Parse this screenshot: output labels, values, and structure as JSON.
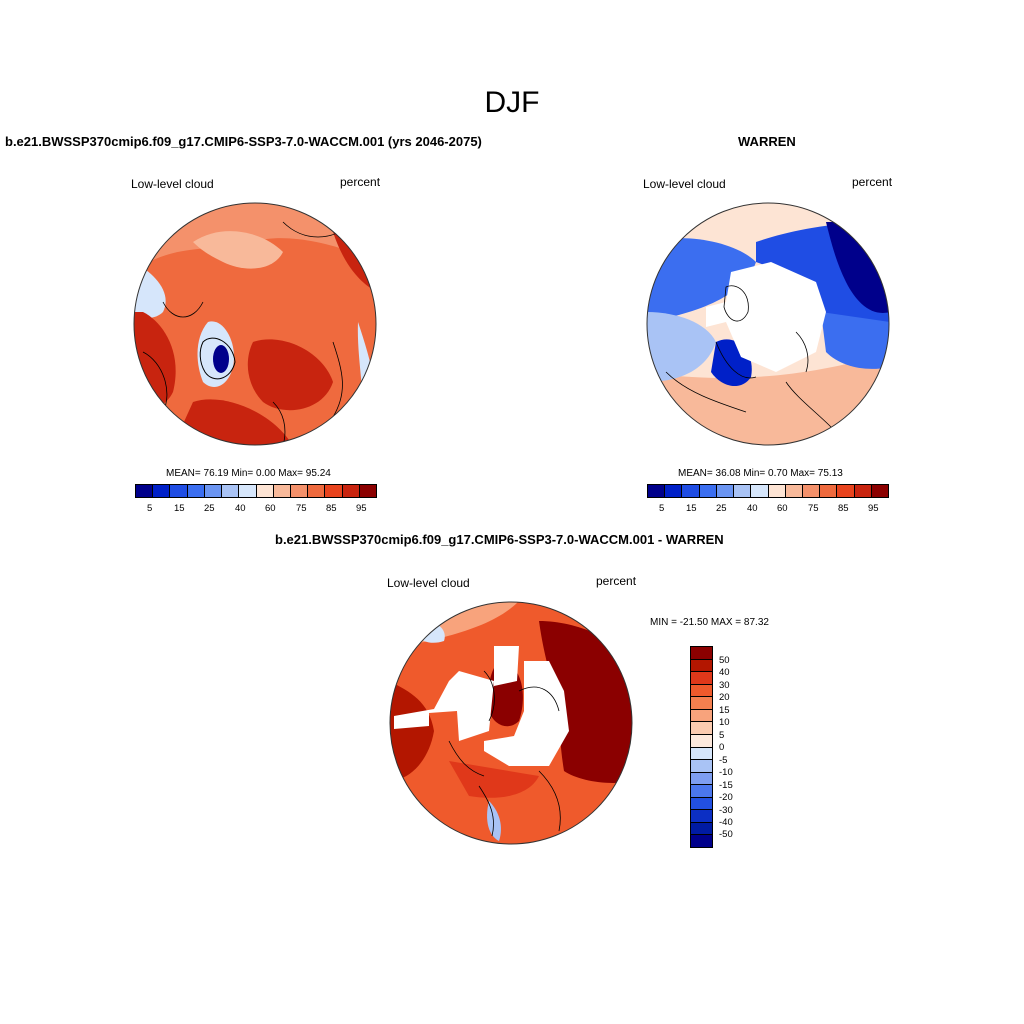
{
  "figure": {
    "season": "DJF",
    "colors": {
      "seq": [
        "#00008b",
        "#0020c8",
        "#1f4de4",
        "#3b6ef0",
        "#6b95f2",
        "#a9c3f5",
        "#d6e6fb",
        "#fde4d4",
        "#f8b99a",
        "#f4916b",
        "#ef6a3e",
        "#e8431d",
        "#c8240f",
        "#8b0000"
      ],
      "diff": [
        "#8b0000",
        "#b31600",
        "#e0381a",
        "#ef5a2c",
        "#f47f4f",
        "#f8a37c",
        "#fbcbb0",
        "#fde9dd",
        "#d6e6fb",
        "#a9c3f5",
        "#7e9ef1",
        "#4b77ee",
        "#2250e2",
        "#0c2fc4",
        "#001ba3",
        "#00008b"
      ],
      "coast": "#000000"
    }
  },
  "panels": [
    {
      "title": "b.e21.BWSSP370cmip6.f09_g17.CMIP6-SSP3-7.0-WACCM.001 (yrs 2046-2075)",
      "left_label": "Low-level cloud",
      "right_label": "percent",
      "stats": "MEAN=  76.19  Min=   0.00  Max=  95.24",
      "colorbar_ticks": [
        "5",
        "15",
        "25",
        "40",
        "60",
        "75",
        "85",
        "95"
      ]
    },
    {
      "title": "WARREN",
      "left_label": "Low-level cloud",
      "right_label": "percent",
      "stats": "MEAN=  36.08  Min=   0.70  Max=  75.13",
      "colorbar_ticks": [
        "5",
        "15",
        "25",
        "40",
        "60",
        "75",
        "85",
        "95"
      ]
    },
    {
      "title": "b.e21.BWSSP370cmip6.f09_g17.CMIP6-SSP3-7.0-WACCM.001 - WARREN",
      "left_label": "Low-level cloud",
      "right_label": "percent",
      "stats": "MIN = -21.50 MAX =  87.32",
      "colorbar_ticks": [
        "50",
        "40",
        "30",
        "20",
        "15",
        "10",
        "5",
        "0",
        "-5",
        "-10",
        "-15",
        "-20",
        "-30",
        "-40",
        "-50"
      ]
    }
  ]
}
